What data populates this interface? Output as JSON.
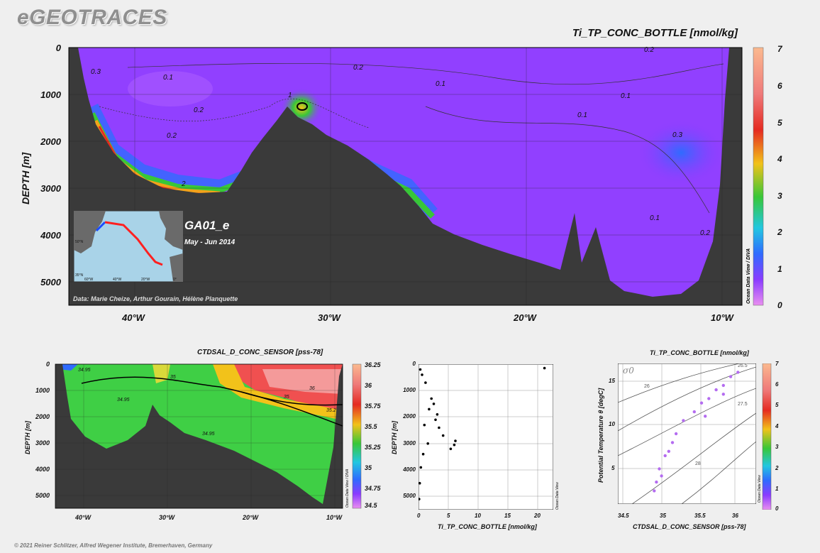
{
  "logo": "eGEOTRACES",
  "main": {
    "title": "Ti_TP_CONC_BOTTLE [nmol/kg]",
    "ylabel": "DEPTH [m]",
    "y_ticks": [
      "0",
      "1000",
      "2000",
      "3000",
      "4000",
      "5000"
    ],
    "x_ticks": [
      "40°W",
      "30°W",
      "20°W",
      "10°W"
    ],
    "cruise": "GA01_e",
    "period": "May - Jun 2014",
    "credits": "Data: Marie Cheize, Arthur Gourain, Hélène Planquette",
    "colorbar_ticks": [
      "7",
      "6",
      "5",
      "4",
      "3",
      "2",
      "1",
      "0"
    ],
    "odv_label": "Ocean Data View / DIVA",
    "contour_labels": [
      "0.3",
      "0.1",
      "0.2",
      "0.2",
      "1",
      "0.2",
      "0.1",
      "0.1",
      "0.1",
      "0.3",
      "0.2",
      "0.1",
      "0.2",
      "2"
    ]
  },
  "inset_map": {
    "lat_labels": [
      "50°N",
      "35°N"
    ],
    "lon_labels": [
      "60°W",
      "40°W",
      "20°W",
      "0°"
    ]
  },
  "sal": {
    "title": "CTDSAL_D_CONC_SENSOR [pss-78]",
    "ylabel": "DEPTH [m]",
    "y_ticks": [
      "0",
      "1000",
      "2000",
      "3000",
      "4000",
      "5000"
    ],
    "x_ticks": [
      "40°W",
      "30°W",
      "20°W",
      "10°W"
    ],
    "colorbar_ticks": [
      "36.25",
      "36",
      "35.75",
      "35.5",
      "35.25",
      "35",
      "34.75",
      "34.5"
    ],
    "odv_label": "Ocean Data View / DIVA",
    "contour_labels": [
      "34.95",
      "35",
      "34.95",
      "35",
      "36",
      "35.2",
      "34.95"
    ]
  },
  "profile": {
    "ylabel": "DEPTH [m]",
    "xlabel": "Ti_TP_CONC_BOTTLE [nmol/kg]",
    "y_ticks": [
      "0",
      "1000",
      "2000",
      "3000",
      "4000",
      "5000"
    ],
    "x_ticks": [
      "0",
      "5",
      "10",
      "15",
      "20"
    ],
    "odv_label": "Ocean Data View"
  },
  "ts": {
    "title": "Ti_TP_CONC_BOTTLE [nmol/kg]",
    "ylabel": "Potential Temperature θ [degC]",
    "xlabel": "CTDSAL_D_CONC_SENSOR [pss-78]",
    "x_ticks": [
      "34.5",
      "35",
      "35.5",
      "36"
    ],
    "y_ticks": [
      "15",
      "10",
      "5"
    ],
    "sigma_label": "σ0",
    "isopycnal_labels": [
      "26",
      "26.5",
      "27",
      "27.5",
      "28"
    ],
    "colorbar_ticks": [
      "7",
      "6",
      "5",
      "4",
      "3",
      "2",
      "1",
      "0"
    ],
    "odv_label": "Ocean Data View"
  },
  "copyright": "© 2021 Reiner Schlitzer, Alfred Wegener Institute, Bremerhaven, Germany",
  "chart_data": [
    {
      "type": "heatmap",
      "title": "Ti_TP_CONC_BOTTLE [nmol/kg]",
      "xlabel": "",
      "ylabel": "DEPTH [m]",
      "xlim": [
        -44,
        -9
      ],
      "ylim": [
        5400,
        0
      ],
      "colorbar": [
        0,
        7
      ],
      "section": "GA01_e",
      "values_note_levels": [
        0.1,
        0.2,
        0.3,
        1,
        2
      ]
    },
    {
      "type": "heatmap",
      "title": "CTDSAL_D_CONC_SENSOR [pss-78]",
      "xlabel": "",
      "ylabel": "DEPTH [m]",
      "xlim": [
        -44,
        -9
      ],
      "ylim": [
        5500,
        0
      ],
      "colorbar": [
        34.5,
        36.25
      ]
    },
    {
      "type": "scatter",
      "xlabel": "Ti_TP_CONC_BOTTLE [nmol/kg]",
      "ylabel": "DEPTH [m]",
      "xlim": [
        0,
        23
      ],
      "ylim": [
        5500,
        0
      ],
      "x": [
        21.5,
        0.3,
        0.6,
        1.2,
        2.2,
        1.8,
        3.2,
        2.9,
        3.5,
        4.2,
        6.3,
        6.1,
        5.5,
        0.8,
        1.6,
        0.4,
        0.2,
        0.1,
        1.0,
        2.6
      ],
      "y": [
        150,
        200,
        400,
        700,
        1300,
        1700,
        1900,
        2100,
        2400,
        2700,
        2900,
        3050,
        3200,
        3400,
        3000,
        3900,
        4500,
        5100,
        2300,
        1500
      ]
    },
    {
      "type": "scatter",
      "title": "Ti_TP_CONC_BOTTLE [nmol/kg]",
      "xlabel": "CTDSAL_D_CONC_SENSOR [pss-78]",
      "ylabel": "Potential Temperature θ [degC]",
      "xlim": [
        34.4,
        36.3
      ],
      "ylim": [
        1,
        17
      ],
      "x": [
        34.9,
        34.93,
        34.97,
        35.05,
        35.15,
        35.2,
        35.3,
        35.45,
        35.55,
        35.65,
        35.75,
        35.85,
        35.95,
        36.05,
        35.0,
        35.1,
        35.6,
        35.85
      ],
      "y": [
        2.5,
        3.5,
        5.0,
        6.5,
        8.0,
        9.0,
        10.5,
        11.5,
        12.5,
        13.0,
        14.0,
        14.5,
        15.5,
        16.0,
        4.2,
        7.0,
        11.0,
        13.5
      ]
    }
  ]
}
